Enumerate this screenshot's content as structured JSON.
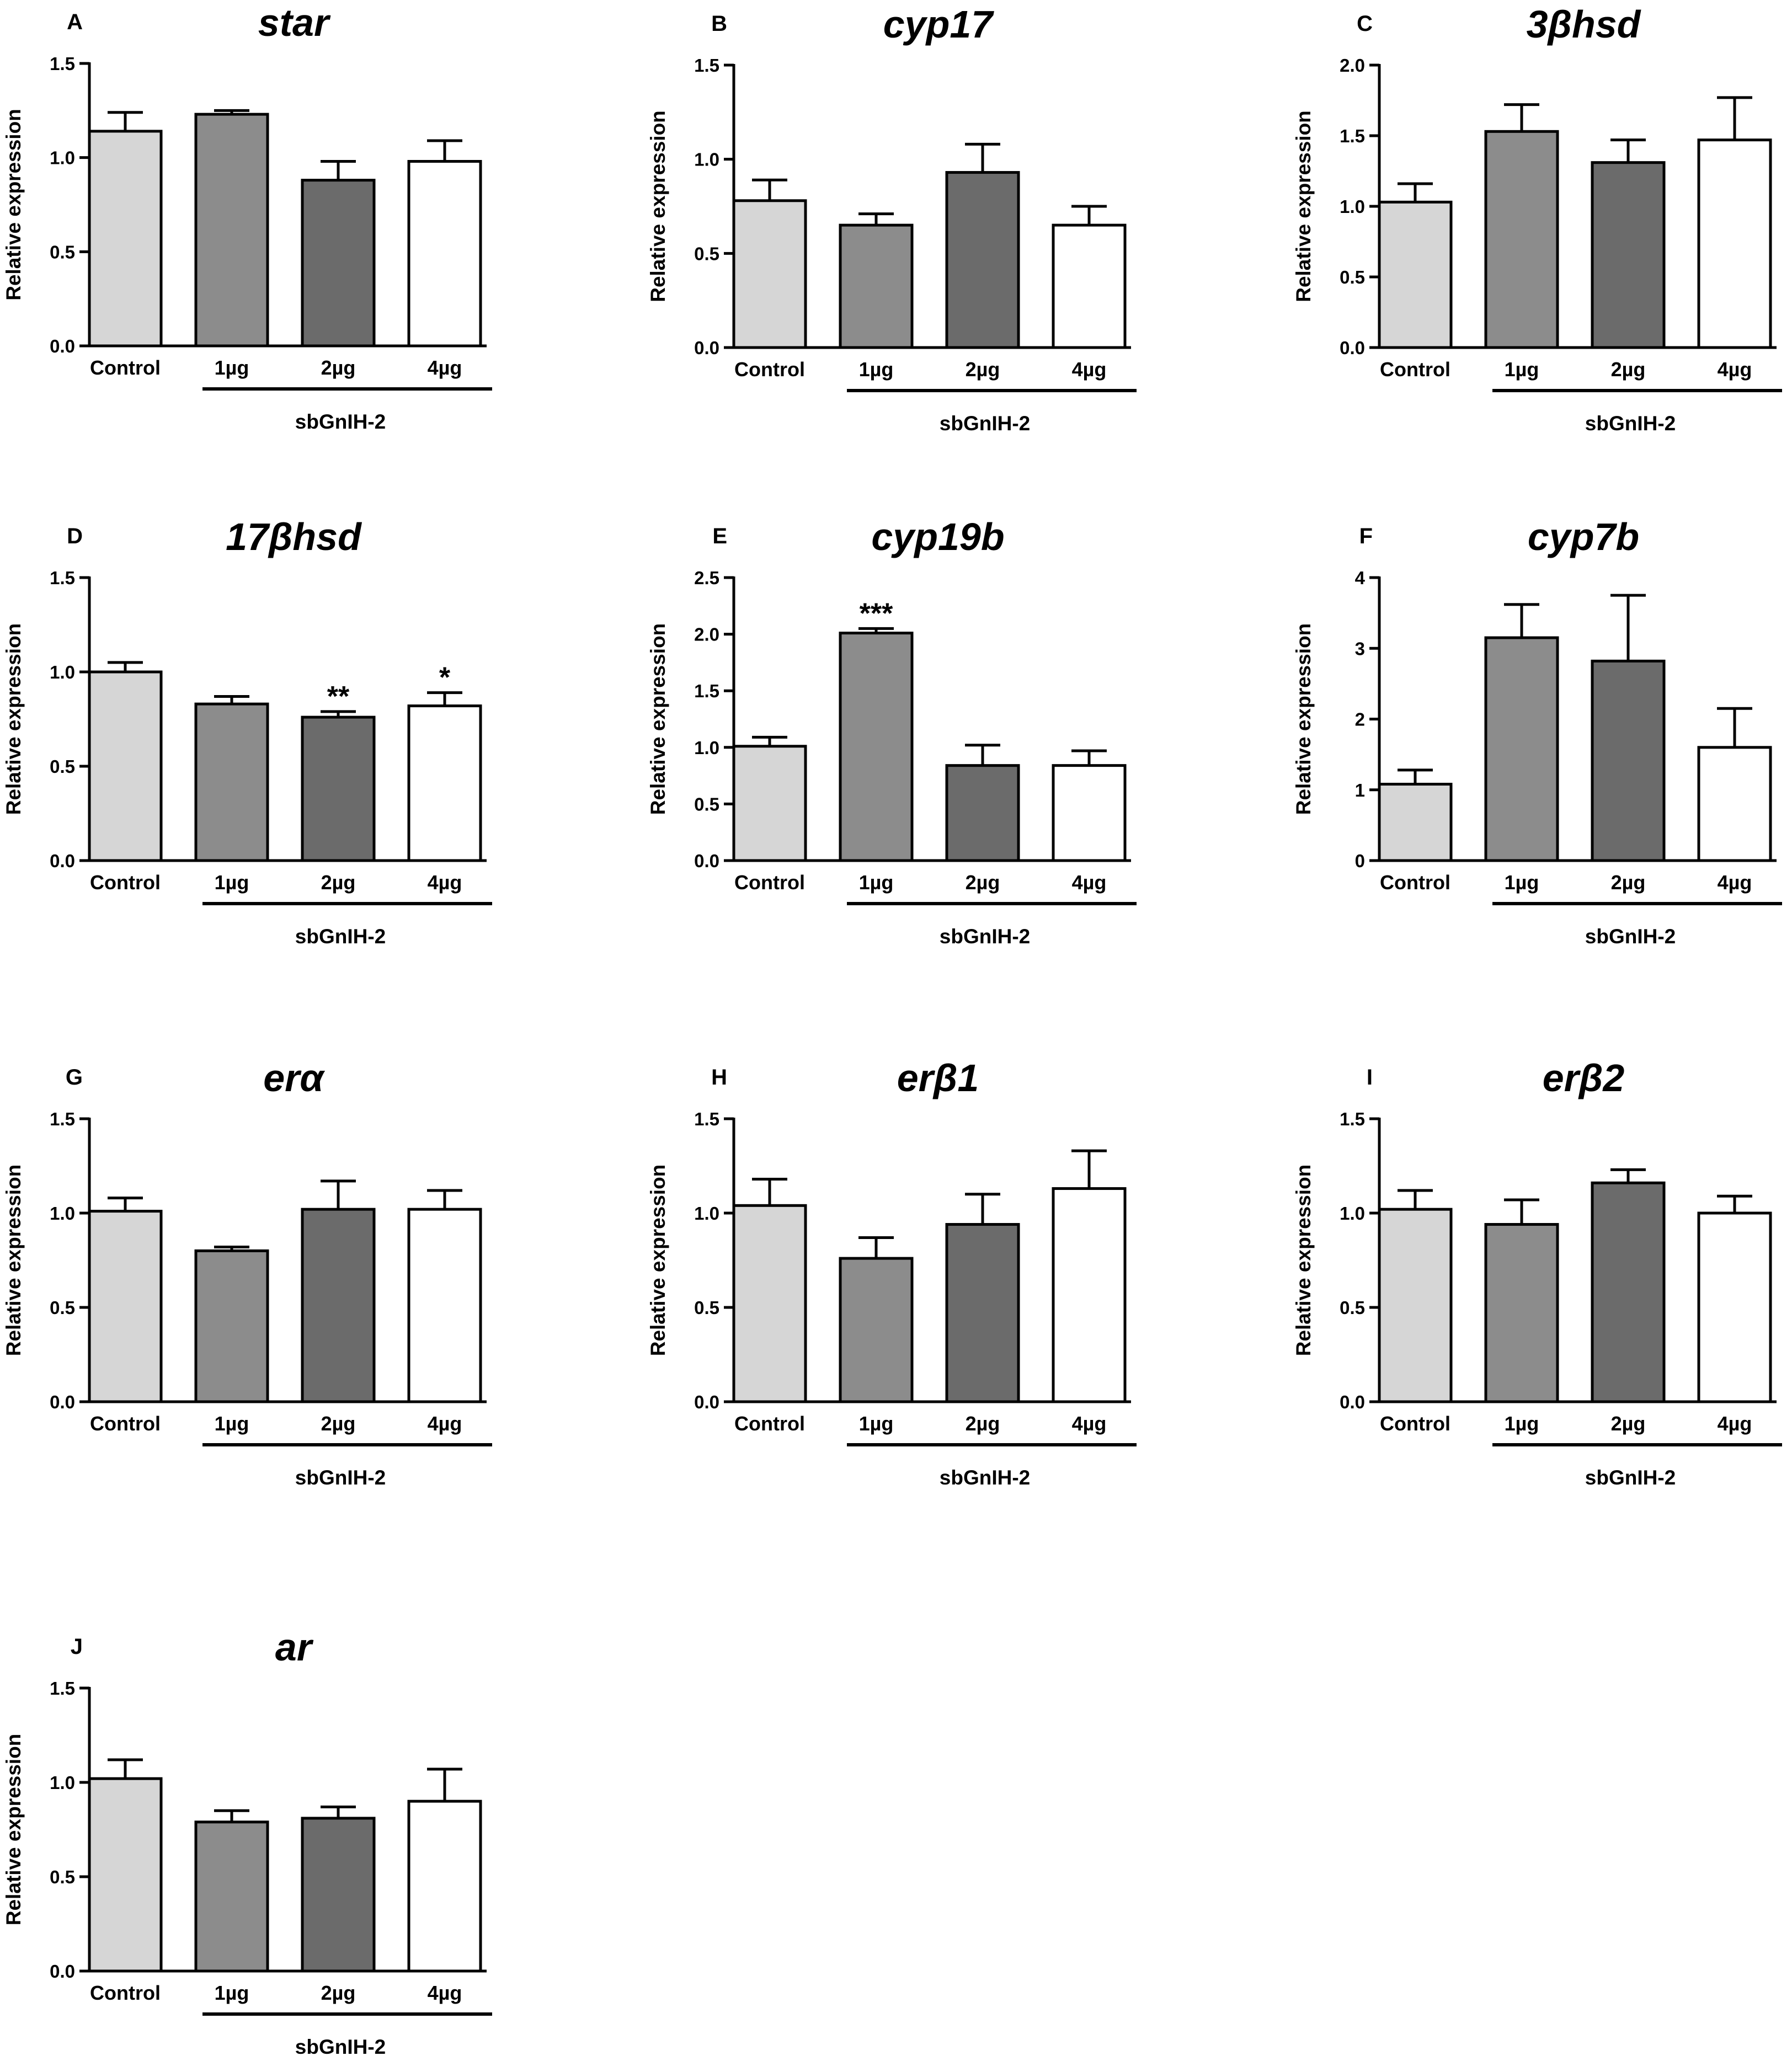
{
  "figure": {
    "categories": [
      "Control",
      "1µg",
      "2µg",
      "4µg"
    ],
    "group_label": "sbGnIH-2",
    "bar_colors": [
      "#d6d6d6",
      "#8c8c8c",
      "#6b6b6b",
      "#ffffff"
    ]
  },
  "chart_data": [
    {
      "panel": "A",
      "title": "star",
      "type": "bar",
      "ylabel": "Relative expression",
      "categories": [
        "Control",
        "1µg",
        "2µg",
        "4µg"
      ],
      "values": [
        1.14,
        1.23,
        0.88,
        0.98
      ],
      "errors": [
        0.1,
        0.02,
        0.1,
        0.11
      ],
      "significance": [
        "",
        "",
        "",
        ""
      ],
      "ylim": [
        0,
        1.5
      ],
      "yticks": [
        "0.0",
        "0.5",
        "1.0",
        "1.5"
      ],
      "xlabel": "sbGnIH-2"
    },
    {
      "panel": "B",
      "title": "cyp17",
      "type": "bar",
      "ylabel": "Relative expression",
      "categories": [
        "Control",
        "1µg",
        "2µg",
        "4µg"
      ],
      "values": [
        0.78,
        0.65,
        0.93,
        0.65
      ],
      "errors": [
        0.11,
        0.06,
        0.15,
        0.1
      ],
      "significance": [
        "",
        "",
        "",
        ""
      ],
      "ylim": [
        0,
        1.5
      ],
      "yticks": [
        "0.0",
        "0.5",
        "1.0",
        "1.5"
      ],
      "xlabel": "sbGnIH-2"
    },
    {
      "panel": "C",
      "title": "3βhsd",
      "type": "bar",
      "ylabel": "Relative expression",
      "categories": [
        "Control",
        "1µg",
        "2µg",
        "4µg"
      ],
      "values": [
        1.03,
        1.53,
        1.31,
        1.47
      ],
      "errors": [
        0.13,
        0.19,
        0.16,
        0.3
      ],
      "significance": [
        "",
        "",
        "",
        ""
      ],
      "ylim": [
        0,
        2.0
      ],
      "yticks": [
        "0.0",
        "0.5",
        "1.0",
        "1.5",
        "2.0"
      ],
      "xlabel": "sbGnIH-2"
    },
    {
      "panel": "D",
      "title": "17βhsd",
      "type": "bar",
      "ylabel": "Relative expression",
      "categories": [
        "Control",
        "1µg",
        "2µg",
        "4µg"
      ],
      "values": [
        1.0,
        0.83,
        0.76,
        0.82
      ],
      "errors": [
        0.05,
        0.04,
        0.03,
        0.07
      ],
      "significance": [
        "",
        "",
        "**",
        "*"
      ],
      "ylim": [
        0,
        1.5
      ],
      "yticks": [
        "0.0",
        "0.5",
        "1.0",
        "1.5"
      ],
      "xlabel": "sbGnIH-2"
    },
    {
      "panel": "E",
      "title": "cyp19b",
      "type": "bar",
      "ylabel": "Relative expression",
      "categories": [
        "Control",
        "1µg",
        "2µg",
        "4µg"
      ],
      "values": [
        1.01,
        2.01,
        0.84,
        0.84
      ],
      "errors": [
        0.08,
        0.04,
        0.18,
        0.13
      ],
      "significance": [
        "",
        "***",
        "",
        ""
      ],
      "ylim": [
        0,
        2.5
      ],
      "yticks": [
        "0.0",
        "0.5",
        "1.0",
        "1.5",
        "2.0",
        "2.5"
      ],
      "xlabel": "sbGnIH-2"
    },
    {
      "panel": "F",
      "title": "cyp7b",
      "type": "bar",
      "ylabel": "Relative expression",
      "categories": [
        "Control",
        "1µg",
        "2µg",
        "4µg"
      ],
      "values": [
        1.08,
        3.15,
        2.82,
        1.6
      ],
      "errors": [
        0.2,
        0.47,
        0.93,
        0.55
      ],
      "significance": [
        "",
        "",
        "",
        ""
      ],
      "ylim": [
        0,
        4
      ],
      "yticks": [
        "0",
        "1",
        "2",
        "3",
        "4"
      ],
      "xlabel": "sbGnIH-2"
    },
    {
      "panel": "G",
      "title": "erα",
      "type": "bar",
      "ylabel": "Relative expression",
      "categories": [
        "Control",
        "1µg",
        "2µg",
        "4µg"
      ],
      "values": [
        1.01,
        0.8,
        1.02,
        1.02
      ],
      "errors": [
        0.07,
        0.02,
        0.15,
        0.1
      ],
      "significance": [
        "",
        "",
        "",
        ""
      ],
      "ylim": [
        0,
        1.5
      ],
      "yticks": [
        "0.0",
        "0.5",
        "1.0",
        "1.5"
      ],
      "xlabel": "sbGnIH-2"
    },
    {
      "panel": "H",
      "title": "erβ1",
      "type": "bar",
      "ylabel": "Relative expression",
      "categories": [
        "Control",
        "1µg",
        "2µg",
        "4µg"
      ],
      "values": [
        1.04,
        0.76,
        0.94,
        1.13
      ],
      "errors": [
        0.14,
        0.11,
        0.16,
        0.2
      ],
      "significance": [
        "",
        "",
        "",
        ""
      ],
      "ylim": [
        0,
        1.5
      ],
      "yticks": [
        "0.0",
        "0.5",
        "1.0",
        "1.5"
      ],
      "xlabel": "sbGnIH-2"
    },
    {
      "panel": "I",
      "title": "erβ2",
      "type": "bar",
      "ylabel": "Relative expression",
      "categories": [
        "Control",
        "1µg",
        "2µg",
        "4µg"
      ],
      "values": [
        1.02,
        0.94,
        1.16,
        1.0
      ],
      "errors": [
        0.1,
        0.13,
        0.07,
        0.09
      ],
      "significance": [
        "",
        "",
        "",
        ""
      ],
      "ylim": [
        0,
        1.5
      ],
      "yticks": [
        "0.0",
        "0.5",
        "1.0",
        "1.5"
      ],
      "xlabel": "sbGnIH-2"
    },
    {
      "panel": "J",
      "title": "ar",
      "type": "bar",
      "ylabel": "Relative expression",
      "categories": [
        "Control",
        "1µg",
        "2µg",
        "4µg"
      ],
      "values": [
        1.02,
        0.79,
        0.81,
        0.9
      ],
      "errors": [
        0.1,
        0.06,
        0.06,
        0.17
      ],
      "significance": [
        "",
        "",
        "",
        ""
      ],
      "ylim": [
        0,
        1.5
      ],
      "yticks": [
        "0.0",
        "0.5",
        "1.0",
        "1.5"
      ],
      "xlabel": "sbGnIH-2"
    }
  ]
}
